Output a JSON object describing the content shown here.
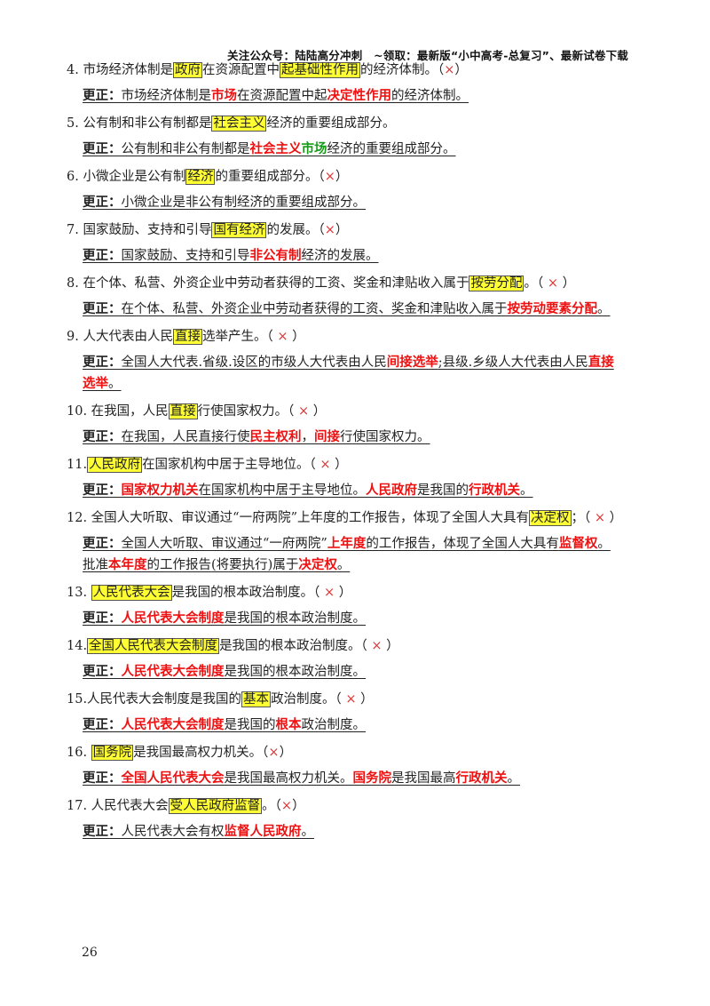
{
  "header": "关注公众号：陆陆高分冲刺　~领取：最新版“小中高考-总复习”、最新试卷下载",
  "page_number": "26",
  "items": [
    {
      "q": [
        {
          "t": "4. 市场经济体制是"
        },
        {
          "t": "政府",
          "s": "hl"
        },
        {
          "t": "在资源配置中"
        },
        {
          "t": "起基础性作用",
          "s": "hl"
        },
        {
          "t": "的经济体制。（"
        },
        {
          "t": "×",
          "s": "mark"
        },
        {
          "t": "）"
        }
      ],
      "c": [
        [
          {
            "t": "更正：",
            "s": "lbl"
          },
          {
            "t": "市场经济体制是"
          },
          {
            "t": "市场",
            "s": "red"
          },
          {
            "t": "在资源配置中起"
          },
          {
            "t": "决定性作用",
            "s": "red"
          },
          {
            "t": "的经济体制。"
          }
        ]
      ]
    },
    {
      "q": [
        {
          "t": "5. 公有制和非公有制都是"
        },
        {
          "t": "社会主义",
          "s": "hl"
        },
        {
          "t": "经济的重要组成部分。"
        }
      ],
      "c": [
        [
          {
            "t": "更正：",
            "s": "lbl"
          },
          {
            "t": "公有制和非公有制都是"
          },
          {
            "t": "社会主义",
            "s": "red"
          },
          {
            "t": "市场",
            "s": "grn"
          },
          {
            "t": "经济的重要组成部分。"
          }
        ]
      ]
    },
    {
      "q": [
        {
          "t": "6. 小微企业是公有制"
        },
        {
          "t": "经济",
          "s": "hl"
        },
        {
          "t": "的重要组成部分。（"
        },
        {
          "t": "×",
          "s": "mark"
        },
        {
          "t": "）"
        }
      ],
      "c": [
        [
          {
            "t": "更正：",
            "s": "lbl"
          },
          {
            "t": "小微企业是非公有制经济的重要组成部分。"
          }
        ]
      ]
    },
    {
      "q": [
        {
          "t": "7. 国家鼓励、支持和引导"
        },
        {
          "t": "国有经济",
          "s": "hl"
        },
        {
          "t": "的发展。（"
        },
        {
          "t": "×",
          "s": "mark"
        },
        {
          "t": "）"
        }
      ],
      "c": [
        [
          {
            "t": "更正：",
            "s": "lbl"
          },
          {
            "t": "国家鼓励、支持和引导"
          },
          {
            "t": "非公有制",
            "s": "red"
          },
          {
            "t": "经济的发展。"
          }
        ]
      ]
    },
    {
      "q": [
        {
          "t": "8. 在个体、私营、外资企业中劳动者获得的工资、奖金和津贴收入属于"
        },
        {
          "t": "按劳分配",
          "s": "hl"
        },
        {
          "t": "。（ "
        },
        {
          "t": "×",
          "s": "mark"
        },
        {
          "t": " ）"
        }
      ],
      "c": [
        [
          {
            "t": "更正：",
            "s": "lbl"
          },
          {
            "t": "在个体、私营、外资企业中劳动者获得的工资、奖金和津贴收入属于"
          },
          {
            "t": "按劳动要素分配",
            "s": "red"
          },
          {
            "t": "。"
          }
        ]
      ]
    },
    {
      "q": [
        {
          "t": "9. 人大代表由人民"
        },
        {
          "t": "直接",
          "s": "hl"
        },
        {
          "t": "选举产生。（ "
        },
        {
          "t": "×",
          "s": "mark"
        },
        {
          "t": " ）"
        }
      ],
      "c": [
        [
          {
            "t": "更正：",
            "s": "lbl"
          },
          {
            "t": "全国人大代表.省级.设区的市级人大代表由人民"
          },
          {
            "t": "间接选举",
            "s": "red"
          },
          {
            "t": ";县级.乡级人大代表由人民"
          },
          {
            "t": "直接",
            "s": "red"
          }
        ],
        [
          {
            "t": "选举",
            "s": "red"
          },
          {
            "t": "。"
          }
        ]
      ]
    },
    {
      "q": [
        {
          "t": "10. 在我国，人民"
        },
        {
          "t": "直接",
          "s": "hl"
        },
        {
          "t": "行使国家权力。（ "
        },
        {
          "t": "×",
          "s": "mark"
        },
        {
          "t": " ）"
        }
      ],
      "c": [
        [
          {
            "t": "更正：",
            "s": "lbl"
          },
          {
            "t": "在我国，人民直接行使"
          },
          {
            "t": "民主权利",
            "s": "red"
          },
          {
            "t": "，"
          },
          {
            "t": "间接",
            "s": "red"
          },
          {
            "t": "行使国家权力。"
          }
        ]
      ]
    },
    {
      "q": [
        {
          "t": "11."
        },
        {
          "t": "人民政府",
          "s": "hl"
        },
        {
          "t": "在国家机构中居于主导地位。（ "
        },
        {
          "t": "×",
          "s": "mark"
        },
        {
          "t": " ）"
        }
      ],
      "c": [
        [
          {
            "t": "更正：",
            "s": "lbl"
          },
          {
            "t": "国家权力机关",
            "s": "red"
          },
          {
            "t": "在国家机构中居于主导地位。"
          },
          {
            "t": "人民政府",
            "s": "red"
          },
          {
            "t": "是我国的"
          },
          {
            "t": "行政机关",
            "s": "red"
          },
          {
            "t": "。"
          }
        ]
      ]
    },
    {
      "q": [
        {
          "t": "12. 全国人大听取、审议通过“一府两院”上年度的工作报告，体现了全国人大具有"
        },
        {
          "t": "决定权",
          "s": "hl"
        },
        {
          "t": "；（ "
        },
        {
          "t": "×",
          "s": "mark"
        },
        {
          "t": " ）"
        }
      ],
      "c": [
        [
          {
            "t": "更正：",
            "s": "lbl"
          },
          {
            "t": "全国人大听取、审议通过“一府两院”"
          },
          {
            "t": "上年度",
            "s": "red"
          },
          {
            "t": "的工作报告，体现了全国人大具有"
          },
          {
            "t": "监督权",
            "s": "red"
          },
          {
            "t": "。"
          }
        ],
        [
          {
            "t": "批准"
          },
          {
            "t": "本年度",
            "s": "red"
          },
          {
            "t": "的工作报告(将要执行)属于"
          },
          {
            "t": "决定权",
            "s": "red"
          },
          {
            "t": "。"
          }
        ]
      ]
    },
    {
      "q": [
        {
          "t": "13. "
        },
        {
          "t": "人民代表大会",
          "s": "hl"
        },
        {
          "t": "是我国的根本政治制度。（ "
        },
        {
          "t": "×",
          "s": "mark"
        },
        {
          "t": " ）"
        }
      ],
      "c": [
        [
          {
            "t": "更正：",
            "s": "lbl"
          },
          {
            "t": "人民代表大会制度",
            "s": "red"
          },
          {
            "t": "是我国的根本政治制度。"
          }
        ]
      ]
    },
    {
      "q": [
        {
          "t": "14."
        },
        {
          "t": "全国人民代表大会制度",
          "s": "hl"
        },
        {
          "t": "是我国的根本政治制度。（ "
        },
        {
          "t": "×",
          "s": "mark"
        },
        {
          "t": " ）"
        }
      ],
      "c": [
        [
          {
            "t": "更正：",
            "s": "lbl"
          },
          {
            "t": "人民代表大会制度",
            "s": "red"
          },
          {
            "t": "是我国的根本政治制度。"
          }
        ]
      ]
    },
    {
      "q": [
        {
          "t": "15.人民代表大会制度是我国的"
        },
        {
          "t": "基本",
          "s": "hl"
        },
        {
          "t": "政治制度。（ "
        },
        {
          "t": "×",
          "s": "mark"
        },
        {
          "t": " ）"
        }
      ],
      "c": [
        [
          {
            "t": "更正：",
            "s": "lbl"
          },
          {
            "t": "人民代表大会制度",
            "s": "red"
          },
          {
            "t": "是我国的"
          },
          {
            "t": "根本",
            "s": "red"
          },
          {
            "t": "政治制度。"
          }
        ]
      ]
    },
    {
      "q": [
        {
          "t": "16. "
        },
        {
          "t": "国务院",
          "s": "hl"
        },
        {
          "t": "是我国最高权力机关。（"
        },
        {
          "t": "×",
          "s": "mark"
        },
        {
          "t": "）"
        }
      ],
      "c": [
        [
          {
            "t": "更正：",
            "s": "lbl"
          },
          {
            "t": "全国人民代表大会",
            "s": "red"
          },
          {
            "t": "是我国最高权力机关。"
          },
          {
            "t": "国务院",
            "s": "red"
          },
          {
            "t": "是我国最高"
          },
          {
            "t": "行政机关",
            "s": "red"
          },
          {
            "t": "。"
          }
        ]
      ]
    },
    {
      "q": [
        {
          "t": "17. 人民代表大会"
        },
        {
          "t": "受人民政府监督",
          "s": "hl"
        },
        {
          "t": "。（"
        },
        {
          "t": "×",
          "s": "mark"
        },
        {
          "t": "）"
        }
      ],
      "c": [
        [
          {
            "t": "更正：",
            "s": "lbl"
          },
          {
            "t": "人民代表大会有权"
          },
          {
            "t": "监督人民政府",
            "s": "red"
          },
          {
            "t": "。"
          }
        ]
      ]
    }
  ]
}
